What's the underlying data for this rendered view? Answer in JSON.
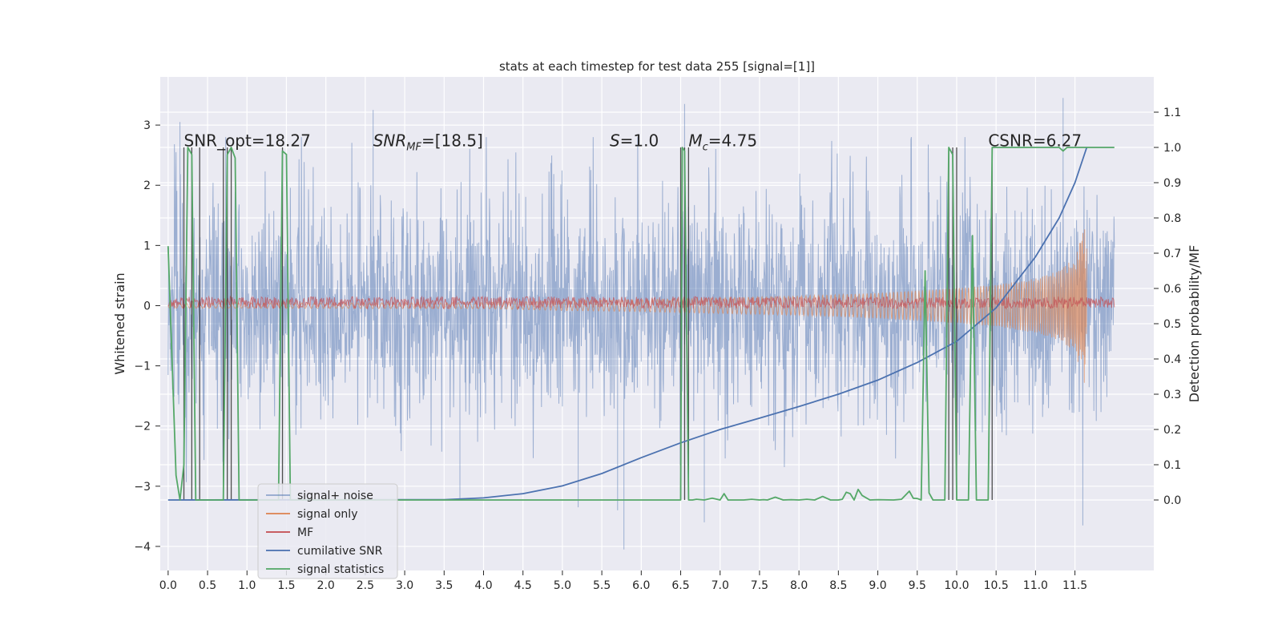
{
  "chart_data": {
    "type": "line",
    "title": "stats at each timestep for test data 255 [signal=[1]]",
    "ylabel": "Whitened strain",
    "ylabel_right": "Detection probability/MF",
    "xlim": [
      -0.1,
      12.5
    ],
    "ylim": [
      -4.4,
      3.8
    ],
    "ylim_right": [
      -0.2,
      1.2
    ],
    "x_ticks": [
      0.0,
      0.5,
      1.0,
      1.5,
      2.0,
      2.5,
      3.0,
      3.5,
      4.0,
      4.5,
      5.0,
      5.5,
      6.0,
      6.5,
      7.0,
      7.5,
      8.0,
      8.5,
      9.0,
      9.5,
      10.0,
      10.5,
      11.0,
      11.5
    ],
    "x_tick_labels": [
      "0.0",
      "0.5",
      "1.0",
      "1.5",
      "2.0",
      "2.5",
      "3.0",
      "3.5",
      "4.0",
      "4.5",
      "5.0",
      "5.5",
      "6.0",
      "6.5",
      "7.0",
      "7.5",
      "8.0",
      "8.5",
      "9.0",
      "9.5",
      "10.0",
      "10.5",
      "11.0",
      "11.5"
    ],
    "y_ticks": [
      -4,
      -3,
      -2,
      -1,
      0,
      1,
      2,
      3
    ],
    "y_tick_labels": [
      "−4",
      "−3",
      "−2",
      "−1",
      "0",
      "1",
      "2",
      "3"
    ],
    "y_right_ticks": [
      0.0,
      0.1,
      0.2,
      0.3,
      0.4,
      0.5,
      0.6,
      0.7,
      0.8,
      0.9,
      1.0,
      1.1
    ],
    "y_right_tick_labels": [
      "0.0",
      "0.1",
      "0.2",
      "0.3",
      "0.4",
      "0.5",
      "0.6",
      "0.7",
      "0.8",
      "0.9",
      "1.0",
      "1.1"
    ],
    "grid": true,
    "legend_position": "lower-left",
    "colors": {
      "background": "#eaeaf2",
      "signal_noise": "#4c72b0",
      "signal_only": "#dd8452",
      "mf": "#c44e52",
      "cumulative_snr": "#4c72b0",
      "signal_statistics": "#55a868",
      "detection_marks": "#333333"
    },
    "annotations": [
      {
        "key": "snr_opt",
        "text": "SNR_opt=18.27",
        "x": 0.2
      },
      {
        "key": "snr_mf",
        "text": "SNR",
        "sub": "MF",
        "rest": "=[18.5]",
        "x": 2.6
      },
      {
        "key": "s",
        "text": "S",
        "rest": "=1.0",
        "x": 5.6
      },
      {
        "key": "mc",
        "text": "M",
        "sub": "c",
        "rest": "=4.75",
        "x": 6.6
      },
      {
        "key": "csnr",
        "text": "CSNR=6.27",
        "x": 10.4
      }
    ],
    "series": [
      {
        "name": "signal+ noise",
        "kind": "noise",
        "x_range": [
          0.0,
          12.0
        ],
        "typical_amplitude": 1.5,
        "extremes": [
          {
            "x": 0.15,
            "y": 3.05
          },
          {
            "x": 2.6,
            "y": 3.25
          },
          {
            "x": 6.55,
            "y": 3.35
          },
          {
            "x": 11.35,
            "y": 3.45
          },
          {
            "x": 5.78,
            "y": -4.05
          },
          {
            "x": 11.6,
            "y": -3.65
          },
          {
            "x": 5.2,
            "y": -3.35
          },
          {
            "x": 5.7,
            "y": -3.4
          },
          {
            "x": 6.8,
            "y": -3.6
          },
          {
            "x": 3.7,
            "y": -3.2
          }
        ]
      },
      {
        "name": "signal only",
        "kind": "chirp",
        "x_range": [
          0.0,
          11.65
        ],
        "envelope": [
          [
            0.0,
            0.04
          ],
          [
            4.0,
            0.05
          ],
          [
            5.0,
            0.08
          ],
          [
            6.0,
            0.1
          ],
          [
            7.0,
            0.13
          ],
          [
            8.0,
            0.16
          ],
          [
            9.0,
            0.21
          ],
          [
            10.0,
            0.29
          ],
          [
            10.5,
            0.35
          ],
          [
            11.0,
            0.45
          ],
          [
            11.3,
            0.58
          ],
          [
            11.5,
            0.8
          ],
          [
            11.6,
            1.2
          ],
          [
            11.65,
            1.5
          ]
        ]
      },
      {
        "name": "MF",
        "kind": "band",
        "x_range": [
          0.0,
          12.0
        ],
        "center": 0.05,
        "amplitude": 0.1
      },
      {
        "name": "cumilative SNR",
        "kind": "line",
        "axis": "right",
        "x": [
          0.0,
          3.5,
          4.0,
          4.5,
          5.0,
          5.5,
          6.0,
          6.5,
          7.0,
          7.5,
          8.0,
          8.5,
          9.0,
          9.5,
          10.0,
          10.5,
          11.0,
          11.3,
          11.5,
          11.65
        ],
        "values": [
          0.0,
          0.001,
          0.006,
          0.018,
          0.04,
          0.075,
          0.12,
          0.162,
          0.2,
          0.232,
          0.265,
          0.3,
          0.34,
          0.39,
          0.45,
          0.545,
          0.69,
          0.8,
          0.9,
          1.0
        ]
      },
      {
        "name": "signal statistics",
        "kind": "line",
        "axis": "right",
        "x": [
          0.0,
          0.1,
          0.15,
          0.2,
          0.25,
          0.3,
          0.35,
          0.4,
          0.45,
          0.55,
          0.65,
          0.7,
          0.75,
          0.8,
          0.85,
          0.9,
          1.0,
          1.4,
          1.45,
          1.5,
          1.55,
          1.6,
          1.65,
          1.7,
          6.5,
          6.52,
          6.55,
          6.6,
          6.65,
          6.7,
          6.8,
          6.9,
          7.0,
          7.05,
          7.1,
          7.3,
          7.4,
          7.5,
          7.55,
          7.6,
          7.7,
          7.8,
          7.9,
          8.0,
          8.1,
          8.2,
          8.3,
          8.4,
          8.5,
          8.55,
          8.6,
          8.65,
          8.7,
          8.75,
          8.8,
          8.9,
          9.0,
          9.2,
          9.3,
          9.4,
          9.45,
          9.5,
          9.55,
          9.6,
          9.65,
          9.7,
          9.75,
          9.85,
          9.9,
          9.95,
          10.0,
          10.05,
          10.1,
          10.15,
          10.2,
          10.25,
          10.3,
          10.35,
          10.4,
          10.45,
          10.5,
          11.0,
          11.3,
          11.35,
          11.4,
          11.5,
          11.6,
          11.65,
          12.0
        ],
        "values": [
          0.72,
          0.07,
          0.0,
          0.1,
          1.0,
          0.98,
          0.0,
          0.0,
          0.0,
          0.0,
          0.0,
          0.0,
          0.98,
          1.0,
          0.97,
          0.0,
          0.0,
          0.0,
          0.99,
          0.98,
          0.0,
          0.0,
          0.0,
          0.0,
          0.0,
          1.0,
          0.99,
          0.0,
          0.0,
          0.002,
          0.0,
          0.005,
          0.0,
          0.018,
          0.0,
          0.0,
          0.002,
          0.0,
          0.001,
          0.0,
          0.008,
          0.0,
          0.001,
          0.0,
          0.002,
          0.0,
          0.01,
          0.0,
          0.0,
          0.002,
          0.022,
          0.018,
          0.0,
          0.03,
          0.013,
          0.0,
          0.001,
          0.0,
          0.002,
          0.025,
          0.005,
          0.004,
          0.0,
          0.65,
          0.02,
          0.0,
          0.0,
          0.0,
          1.0,
          0.98,
          0.0,
          0.0,
          0.0,
          0.0,
          0.75,
          0.0,
          0.0,
          0.0,
          0.0,
          1.0,
          1.0,
          1.0,
          1.0,
          0.99,
          1.0,
          1.0,
          1.0,
          1.0,
          1.0
        ]
      }
    ],
    "detection_marks": [
      0.2,
      0.3,
      0.4,
      0.7,
      0.75,
      0.8,
      1.45,
      6.5,
      6.55,
      6.6,
      9.9,
      9.95,
      10.0,
      10.45
    ],
    "legend": [
      {
        "key": "signal_noise",
        "label": "signal+ noise"
      },
      {
        "key": "signal_only",
        "label": "signal only"
      },
      {
        "key": "mf",
        "label": "MF"
      },
      {
        "key": "cumulative_snr",
        "label": "cumilative SNR"
      },
      {
        "key": "signal_statistics",
        "label": "signal statistics"
      }
    ]
  }
}
